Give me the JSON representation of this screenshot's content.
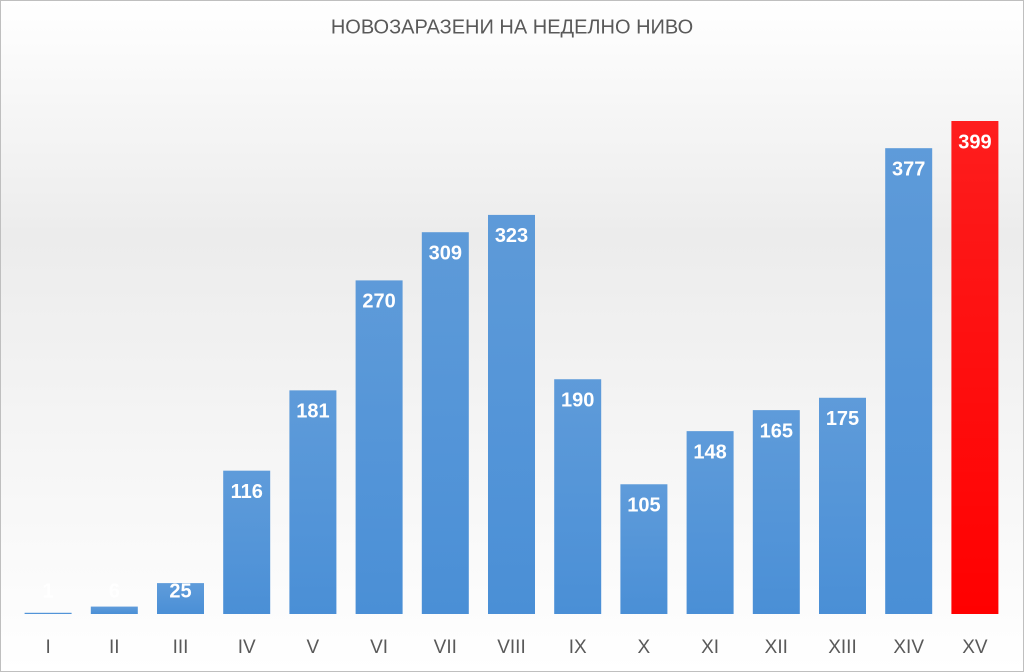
{
  "chart_data": {
    "type": "bar",
    "title": "НОВОЗАРАЗЕНИ НА НЕДЕЛНО НИВО",
    "categories": [
      "I",
      "II",
      "III",
      "IV",
      "V",
      "VI",
      "VII",
      "VIII",
      "IX",
      "X",
      "XI",
      "XII",
      "XIII",
      "XIV",
      "XV"
    ],
    "values": [
      1,
      6,
      25,
      116,
      181,
      270,
      309,
      323,
      190,
      105,
      148,
      165,
      175,
      377,
      399
    ],
    "colors": [
      "#4a8fd6",
      "#4a8fd6",
      "#4a8fd6",
      "#4a8fd6",
      "#4a8fd6",
      "#4a8fd6",
      "#4a8fd6",
      "#4a8fd6",
      "#4a8fd6",
      "#4a8fd6",
      "#4a8fd6",
      "#4a8fd6",
      "#4a8fd6",
      "#4a8fd6",
      "#ff0000"
    ]
  }
}
